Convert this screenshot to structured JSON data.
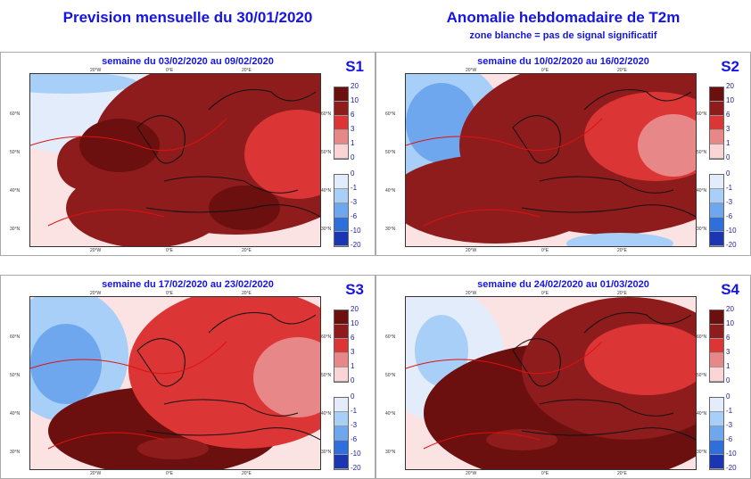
{
  "header": {
    "left_title": "Prevision mensuelle du 30/01/2020",
    "right_title": "Anomalie hebdomadaire de T2m",
    "right_subtitle": "zone blanche = pas de signal significatif"
  },
  "axes": {
    "lat": [
      "60°N",
      "50°N",
      "40°N",
      "30°N"
    ],
    "lon": [
      "20°W",
      "0°E",
      "20°E"
    ]
  },
  "legend": {
    "warm_values": [
      "20",
      "10",
      "6",
      "3",
      "1",
      "0"
    ],
    "warm_colors": [
      "#6b0f0f",
      "#8e1c1c",
      "#dc3535",
      "#e88787",
      "#fbd5d5"
    ],
    "cold_values": [
      "0",
      "-1",
      "-3",
      "-6",
      "-10",
      "-20"
    ],
    "cold_colors": [
      "#e2ecfb",
      "#a8cff8",
      "#6ea7ee",
      "#2f6fdc",
      "#1b36b3"
    ]
  },
  "panels": [
    {
      "label": "S1",
      "title": "semaine du 03/02/2020 au 09/02/2020"
    },
    {
      "label": "S2",
      "title": "semaine du 10/02/2020 au 16/02/2020"
    },
    {
      "label": "S3",
      "title": "semaine du 17/02/2020 au 23/02/2020"
    },
    {
      "label": "S4",
      "title": "semaine du 24/02/2020 au 01/03/2020"
    }
  ]
}
